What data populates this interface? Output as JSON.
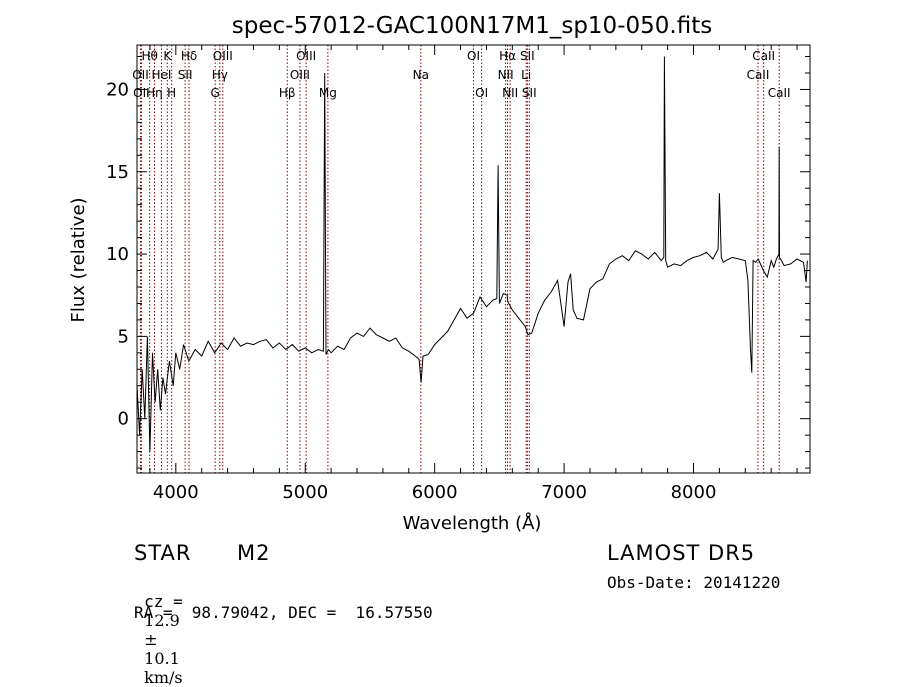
{
  "chart_data": {
    "type": "line",
    "title": "spec-57012-GAC100N17M1_sp10-050.fits",
    "xlabel": "Wavelength (Å)",
    "ylabel": "Flux (relative)",
    "xlim": [
      3700,
      8900
    ],
    "ylim": [
      -3.3,
      22.7
    ],
    "xticks": [
      4000,
      5000,
      6000,
      7000,
      8000
    ],
    "yticks": [
      0,
      5,
      10,
      15,
      20
    ],
    "grid": false,
    "series": [
      {
        "x": [
          3700,
          3720,
          3740,
          3760,
          3780,
          3800,
          3820,
          3840,
          3860,
          3880,
          3900,
          3920,
          3950,
          3980,
          4000,
          4030,
          4060,
          4100,
          4150,
          4200,
          4250,
          4300,
          4350,
          4400,
          4450,
          4500,
          4550,
          4600,
          4650,
          4700,
          4750,
          4800,
          4850,
          4900,
          4950,
          5000,
          5050,
          5100,
          5140,
          5150,
          5160,
          5180,
          5200,
          5250,
          5300,
          5350,
          5400,
          5450,
          5500,
          5550,
          5600,
          5650,
          5700,
          5750,
          5800,
          5850,
          5880,
          5895,
          5910,
          5950,
          6000,
          6050,
          6100,
          6150,
          6200,
          6250,
          6300,
          6350,
          6400,
          6450,
          6480,
          6490,
          6500,
          6510,
          6530,
          6560,
          6563,
          6566,
          6600,
          6650,
          6700,
          6720,
          6750,
          6800,
          6850,
          6900,
          6950,
          7000,
          7030,
          7050,
          7070,
          7100,
          7150,
          7200,
          7250,
          7300,
          7350,
          7400,
          7450,
          7500,
          7550,
          7600,
          7650,
          7700,
          7750,
          7770,
          7775,
          7785,
          7800,
          7850,
          7900,
          7950,
          8000,
          8050,
          8100,
          8150,
          8190,
          8200,
          8215,
          8230,
          8250,
          8300,
          8350,
          8400,
          8420,
          8440,
          8450,
          8460,
          8480,
          8500,
          8540,
          8570,
          8600,
          8620,
          8640,
          8660,
          8662,
          8664,
          8680,
          8700,
          8750,
          8800,
          8850,
          8870,
          8880
        ],
        "y": [
          2,
          -1,
          3,
          0,
          5,
          -2,
          4,
          1,
          3,
          0.5,
          2.5,
          1.5,
          3.5,
          2,
          4,
          3,
          4.5,
          3.5,
          4.2,
          3.8,
          4.7,
          4,
          4.6,
          4.2,
          4.9,
          4.4,
          4.6,
          4.5,
          4.7,
          4.8,
          4.3,
          4.6,
          4.2,
          4.5,
          4.1,
          4.3,
          4,
          4.2,
          4.1,
          21,
          3.9,
          4.2,
          4,
          4.4,
          4.2,
          4.9,
          5.2,
          5,
          5.5,
          5.1,
          4.9,
          4.7,
          4.9,
          4.3,
          4.1,
          3.8,
          3.6,
          2.2,
          3.8,
          3.9,
          4.5,
          4.9,
          5.3,
          6,
          6.7,
          6.1,
          6.4,
          7.4,
          6.8,
          7.2,
          7.3,
          15.4,
          7,
          7.2,
          7.6,
          7.5,
          7.3,
          7.1,
          6.6,
          6.1,
          5.6,
          5.1,
          5.2,
          6.4,
          7.2,
          7.7,
          8.4,
          5.6,
          8.3,
          8.8,
          6.6,
          6.1,
          6,
          7.9,
          8.3,
          8.5,
          9.4,
          9.7,
          9.9,
          9.6,
          10.2,
          10,
          9.7,
          10.1,
          9.6,
          9.8,
          22,
          9.6,
          9.2,
          9.4,
          9.3,
          9.6,
          9.8,
          9.9,
          10.1,
          9.7,
          10.3,
          13.7,
          9.8,
          9.5,
          9.6,
          9.8,
          9.7,
          9.6,
          8.4,
          4.2,
          2.8,
          9.6,
          9.5,
          9.7,
          9,
          8.6,
          9.6,
          9.2,
          9.7,
          10,
          16.5,
          9.8,
          9.6,
          9.3,
          9.4,
          9.7,
          9.5,
          8.3,
          9.6
        ]
      }
    ],
    "lines": [
      {
        "x": 3727,
        "label": "OII",
        "row": 2
      },
      {
        "x": 3734,
        "label": "OII",
        "row": 3
      },
      {
        "x": 3798,
        "label": "Hθ",
        "row": 1
      },
      {
        "x": 3835,
        "label": "Hη",
        "row": 3
      },
      {
        "x": 3889,
        "label": "HeI",
        "row": 2
      },
      {
        "x": 3934,
        "label": "K",
        "row": 1
      },
      {
        "x": 3968,
        "label": "H",
        "row": 3
      },
      {
        "x": 4072,
        "label": "SII",
        "row": 2
      },
      {
        "x": 4102,
        "label": "Hδ",
        "row": 1
      },
      {
        "x": 4304,
        "label": "G",
        "row": 3
      },
      {
        "x": 4340,
        "label": "Hγ",
        "row": 2
      },
      {
        "x": 4363,
        "label": "OIII",
        "row": 1
      },
      {
        "x": 4861,
        "label": "Hβ",
        "row": 3
      },
      {
        "x": 4959,
        "label": "OIII",
        "row": 2
      },
      {
        "x": 5007,
        "label": "OIII",
        "row": 1
      },
      {
        "x": 5175,
        "label": "Mg",
        "row": 3
      },
      {
        "x": 5893,
        "label": "Na",
        "row": 2
      },
      {
        "x": 6300,
        "label": "OI",
        "row": 1
      },
      {
        "x": 6363,
        "label": "OI",
        "row": 3
      },
      {
        "x": 6548,
        "label": "NII",
        "row": 2
      },
      {
        "x": 6563,
        "label": "Hα",
        "row": 1
      },
      {
        "x": 6583,
        "label": "NII",
        "row": 3
      },
      {
        "x": 6707,
        "label": "Li",
        "row": 2
      },
      {
        "x": 6716,
        "label": "SII",
        "row": 1
      },
      {
        "x": 6731,
        "label": "SII",
        "row": 3
      },
      {
        "x": 8498,
        "label": "CaII",
        "row": 2
      },
      {
        "x": 8542,
        "label": "CaII",
        "row": 1
      },
      {
        "x": 8662,
        "label": "CaII",
        "row": 3
      }
    ],
    "line_color": "#8b0000"
  },
  "info": {
    "object_type": "STAR",
    "subclass": "M2",
    "survey": "LAMOST DR5",
    "cz_label": "cz =",
    "cz_value": "12.9",
    "pm": "±",
    "cz_error": "10.1",
    "cz_unit": "km/s",
    "obs_date": "Obs-Date: 20141220",
    "coords": "RA =  98.79042, DEC =  16.57550"
  }
}
